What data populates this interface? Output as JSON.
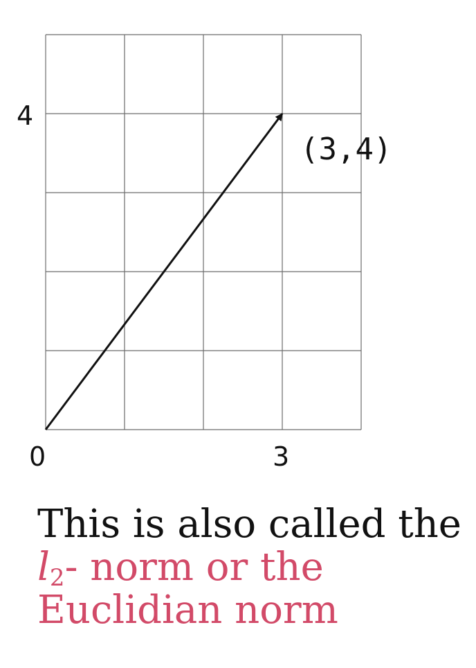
{
  "diagram": {
    "x_ticks": [
      "0",
      "3"
    ],
    "y_ticks": [
      "4"
    ],
    "grid": {
      "columns": 4,
      "rows": 5
    },
    "vector": {
      "from": [
        0,
        0
      ],
      "to": [
        3,
        4
      ]
    },
    "point_label": "(3,4)",
    "colors": {
      "vector": "#111111",
      "grid": "#6b6b6b"
    }
  },
  "caption": {
    "line1": "This is also called the",
    "norm_symbol": "l",
    "norm_subscript": "2",
    "norm_suffix": "- norm or the",
    "line3": "Euclidian norm",
    "accent_color": "#d24a68"
  }
}
